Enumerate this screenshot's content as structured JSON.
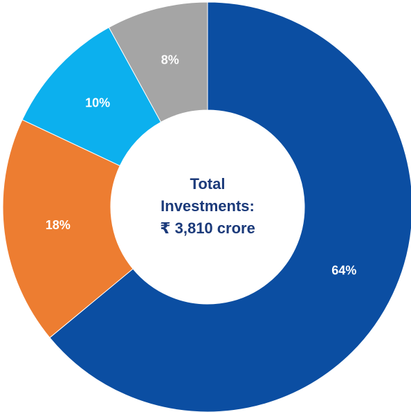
{
  "chart_data": {
    "type": "donut",
    "values": [
      64,
      18,
      10,
      8
    ],
    "value_labels": [
      "64%",
      "18%",
      "10%",
      "8%"
    ],
    "colors": [
      "#0b4ea2",
      "#ed7d31",
      "#0cb0ee",
      "#a5a5a5"
    ],
    "center_text": [
      "Total",
      "Investments:",
      "₹ 3,810 crore"
    ]
  }
}
